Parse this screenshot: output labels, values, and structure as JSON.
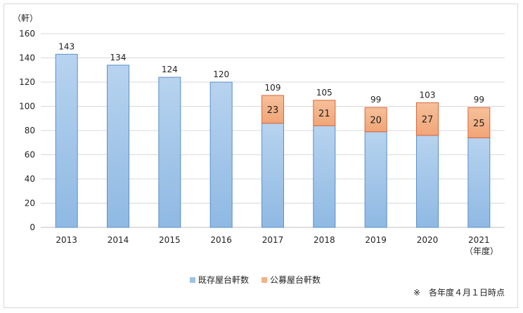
{
  "chart_data": {
    "type": "bar",
    "stacked": true,
    "y_unit_label": "（軒）",
    "x_unit_label": "（年度）",
    "categories": [
      "2013",
      "2014",
      "2015",
      "2016",
      "2017",
      "2018",
      "2019",
      "2020",
      "2021"
    ],
    "series": [
      {
        "name": "既存屋台軒数",
        "color": "#9dc3e6",
        "values": [
          143,
          134,
          124,
          120,
          86,
          84,
          79,
          76,
          74
        ]
      },
      {
        "name": "公募屋台軒数",
        "color": "#f4b183",
        "values": [
          0,
          0,
          0,
          0,
          23,
          21,
          20,
          27,
          25
        ]
      }
    ],
    "segment_labels": [
      "",
      "",
      "",
      "",
      "23",
      "21",
      "20",
      "27",
      "25"
    ],
    "total_labels": [
      "143",
      "134",
      "124",
      "120",
      "109",
      "105",
      "99",
      "103",
      "99"
    ],
    "ylim": [
      0,
      160
    ],
    "yticks": [
      0,
      20,
      40,
      60,
      80,
      100,
      120,
      140,
      160
    ],
    "grid": true,
    "legend_position": "bottom",
    "note": "※　各年度４月１日時点"
  }
}
